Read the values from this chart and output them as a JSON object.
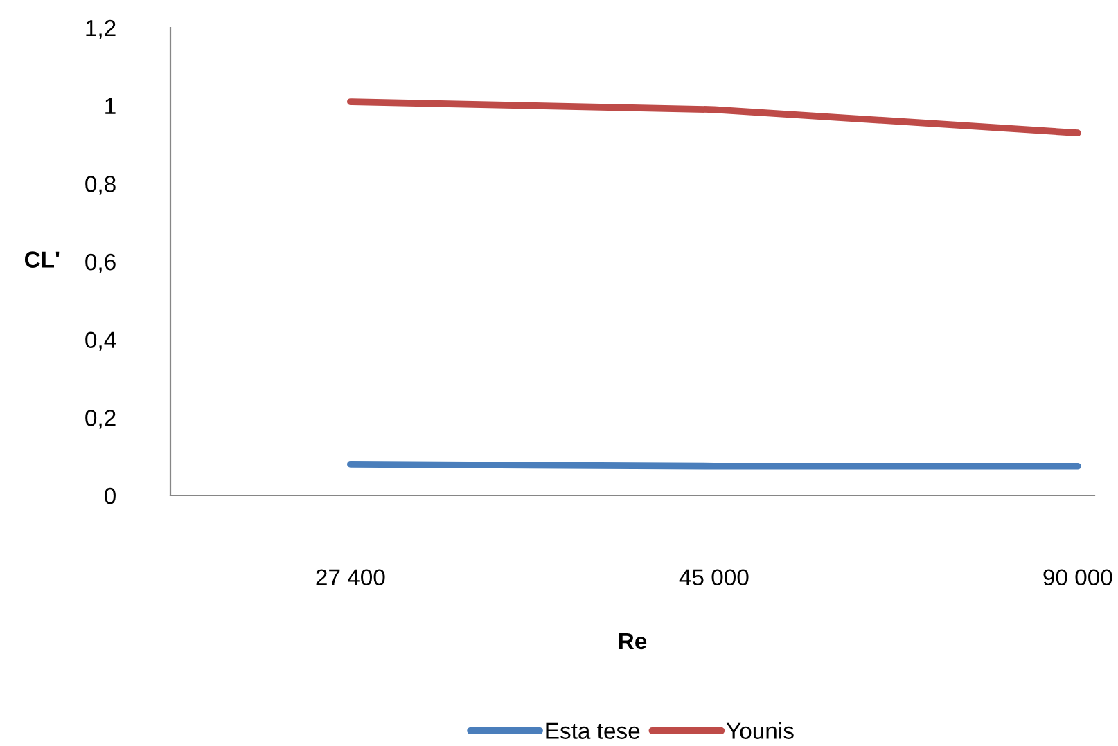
{
  "chart_data": {
    "type": "line",
    "xlabel": "Re",
    "ylabel": "CL'",
    "categories": [
      "27 400",
      "45 000",
      "90 000"
    ],
    "series": [
      {
        "name": "Esta tese",
        "color": "#4a7ebb",
        "values": [
          0.08,
          0.075,
          0.075
        ]
      },
      {
        "name": "Younis",
        "color": "#be4b48",
        "values": [
          1.01,
          0.99,
          0.93
        ]
      }
    ],
    "ylim": [
      0,
      1.2
    ],
    "yticks": [
      {
        "value": 0,
        "label": "0"
      },
      {
        "value": 0.2,
        "label": "0,2"
      },
      {
        "value": 0.4,
        "label": "0,4"
      },
      {
        "value": 0.6,
        "label": "0,6"
      },
      {
        "value": 0.8,
        "label": "0,8"
      },
      {
        "value": 1,
        "label": "1"
      },
      {
        "value": 1.2,
        "label": "1,2"
      }
    ],
    "grid": false,
    "legend": "bottom",
    "marker": "none",
    "line_style": "solid"
  }
}
